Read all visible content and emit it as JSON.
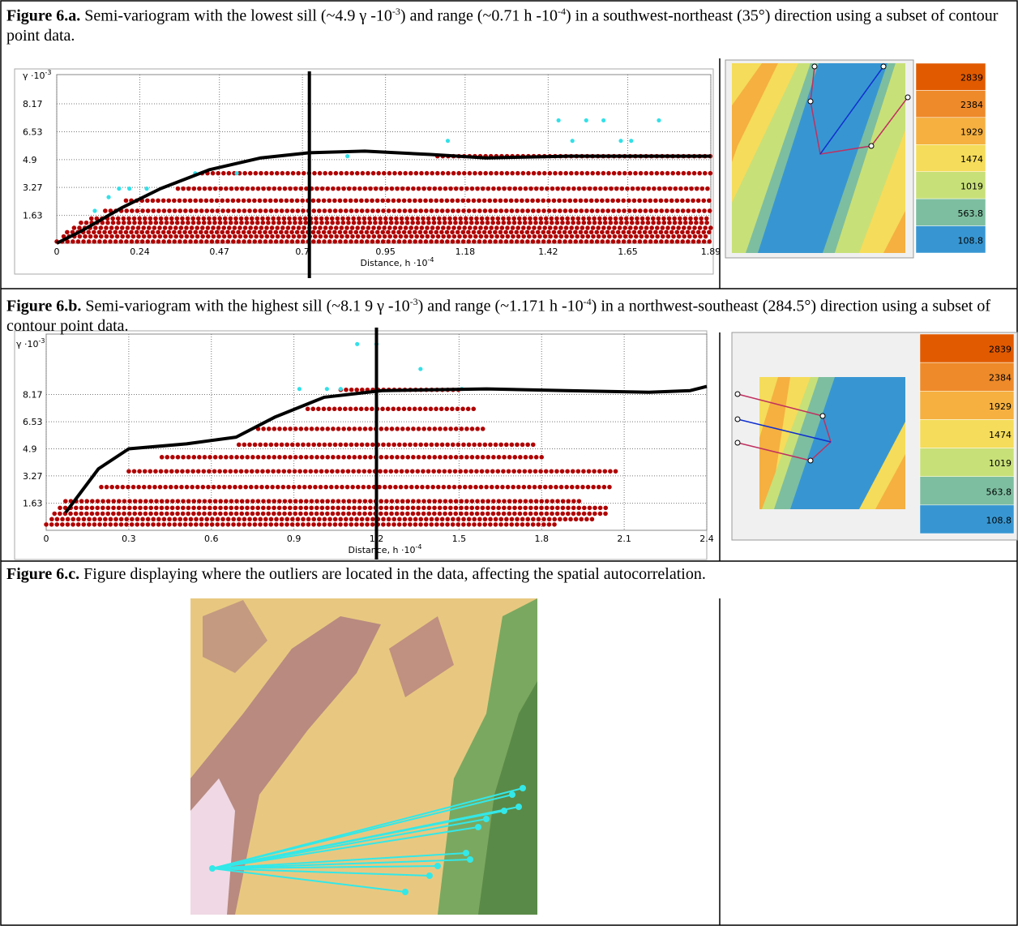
{
  "captions": [
    {
      "label": "Figure 6.a.",
      "text": [
        " Semi-variogram with the lowest sill (~4.9 γ -10",
        ") and range (~0.71 h -10",
        ") in a southwest-northeast (35°) direction using a subset of contour point data."
      ],
      "sup": [
        "-3",
        "-4"
      ]
    },
    {
      "label": "Figure 6.b.",
      "text": [
        " Semi-variogram with the highest sill (~8.1 9 γ -10",
        ") and range (~1.171 h -10",
        ") in a northwest-southeast (284.5°) direction using a subset of contour point data."
      ],
      "sup": [
        "-3",
        "-4"
      ]
    },
    {
      "label": "Figure 6.c.",
      "text": [
        " Figure displaying where the outliers are located in the data, affecting the spatial autocorrelation."
      ]
    }
  ],
  "chart_data": [
    {
      "type": "scatter",
      "y_label": {
        "text": "γ ·10",
        "sup": "-3"
      },
      "x_label": {
        "text": "Distance, h ·10",
        "sup": "-4"
      },
      "xlim": [
        0,
        1.89
      ],
      "ylim": [
        0,
        9.88
      ],
      "xticks": [
        0,
        0.24,
        0.47,
        {
          "value": 0.71,
          "label": "0.7"
        },
        0.95,
        1.18,
        1.42,
        1.65,
        1.89
      ],
      "yticks": [
        1.63,
        3.27,
        4.9,
        6.53,
        8.17
      ],
      "grid": true,
      "bands": {
        "color": "#b00000",
        "y": [
          0.1,
          0.4,
          0.65,
          0.9,
          1.2,
          1.45,
          1.9,
          2.5,
          3.2,
          4.1,
          5.1
        ],
        "x_from": [
          0,
          0.02,
          0.03,
          0.05,
          0.07,
          0.1,
          0.14,
          0.2,
          0.35,
          0.42,
          1.1
        ],
        "x_to": [
          1.89,
          1.89,
          1.89,
          1.89,
          1.89,
          1.89,
          1.89,
          1.89,
          1.89,
          1.89,
          1.89
        ]
      },
      "outliers": {
        "color": "#33e0e8",
        "x": [
          0.11,
          0.15,
          0.18,
          0.21,
          0.26,
          0.4,
          0.52,
          0.84,
          1.13,
          1.45,
          1.49,
          1.53,
          1.58,
          1.63,
          1.66,
          1.74
        ],
        "y": [
          1.9,
          2.7,
          3.2,
          3.2,
          3.2,
          4.1,
          4.1,
          5.1,
          6,
          7.2,
          6,
          7.2,
          7.2,
          6,
          6,
          7.2
        ]
      },
      "model": {
        "color": "#000000",
        "x": [
          0,
          0.07,
          0.19,
          0.3,
          0.44,
          0.59,
          0.73,
          0.89,
          1.08,
          1.24,
          1.48,
          1.89
        ],
        "y": [
          0,
          0.7,
          2.1,
          3.2,
          4.3,
          5,
          5.3,
          5.4,
          5.2,
          5,
          5.1,
          5.1
        ]
      },
      "range_line": 0.73
    },
    {
      "type": "scatter",
      "y_label": {
        "text": "γ ·10",
        "sup": "-3"
      },
      "x_label": {
        "text": "Distance, h ·10",
        "sup": "-4"
      },
      "xlim": [
        0,
        2.4
      ],
      "ylim": [
        0,
        11.8
      ],
      "xticks": [
        0,
        0.3,
        0.6,
        0.9,
        1.2,
        1.5,
        1.8,
        2.1,
        2.4
      ],
      "yticks": [
        1.63,
        3.27,
        4.9,
        6.53,
        8.17
      ],
      "grid": true,
      "bands": {
        "color": "#b00000",
        "y": [
          0.35,
          0.67,
          1,
          1.35,
          1.75,
          2.6,
          3.55,
          4.4,
          5.15,
          6.1,
          7.3,
          8.45
        ],
        "x_from": [
          0,
          0.02,
          0.03,
          0.05,
          0.07,
          0.2,
          0.3,
          0.42,
          0.7,
          0.77,
          0.95,
          1.07
        ],
        "x_to": [
          1.85,
          2,
          2.05,
          2.05,
          1.95,
          2.05,
          2.07,
          1.8,
          1.77,
          1.6,
          1.57,
          1.5
        ]
      },
      "outliers": {
        "color": "#33e0e8",
        "x": [
          1.13,
          1.2,
          0.92,
          1.02,
          1.07,
          1.36,
          1.51
        ],
        "y": [
          11.2,
          11.2,
          8.5,
          8.5,
          8.5,
          9.7,
          8.5
        ]
      },
      "model": {
        "color": "#000000",
        "x": [
          0.07,
          0.19,
          0.3,
          0.51,
          0.69,
          0.83,
          1.01,
          1.22,
          1.6,
          1.89,
          2.19,
          2.34,
          2.4
        ],
        "y": [
          1.05,
          3.7,
          4.9,
          5.2,
          5.6,
          6.8,
          8,
          8.4,
          8.5,
          8.4,
          8.3,
          8.4,
          8.65
        ]
      },
      "range_line": 1.2
    }
  ],
  "maps": [
    {
      "legend": [
        {
          "label": 2839,
          "color": "#e15a00"
        },
        {
          "label": 2384,
          "color": "#ee8a2a"
        },
        {
          "label": 1929,
          "color": "#f5b040"
        },
        {
          "label": 1474,
          "color": "#f5dc5a"
        },
        {
          "label": 1019,
          "color": "#c8e078"
        },
        {
          "label": 563.8,
          "color": "#7dbea0"
        },
        {
          "label": 108.8,
          "color": "#3796d2"
        }
      ]
    },
    {
      "legend": [
        {
          "label": 2839,
          "color": "#e15a00"
        },
        {
          "label": 2384,
          "color": "#ee8a2a"
        },
        {
          "label": 1929,
          "color": "#f5b040"
        },
        {
          "label": 1474,
          "color": "#f5dc5a"
        },
        {
          "label": 1019,
          "color": "#c8e078"
        },
        {
          "label": 563.8,
          "color": "#7dbea0"
        },
        {
          "label": 108.8,
          "color": "#3796d2"
        }
      ]
    }
  ]
}
